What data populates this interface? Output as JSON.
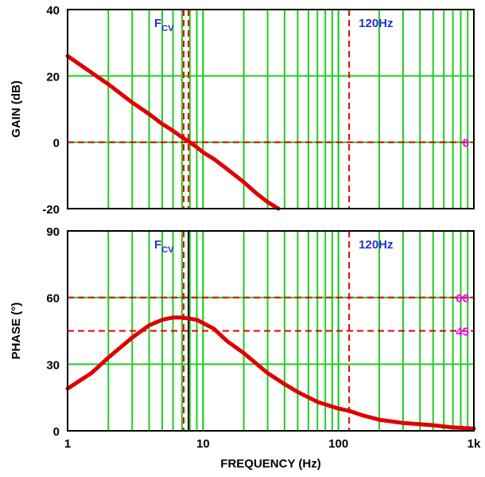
{
  "chart_data": [
    {
      "type": "line",
      "xscale": "log",
      "xlim": [
        1,
        1000
      ],
      "ylim": [
        -20,
        40
      ],
      "ylabel": "GAIN (dB)",
      "yticks": [
        -20,
        0,
        20,
        40
      ],
      "ytick_labels": [
        "-20",
        "0",
        "20",
        "40"
      ],
      "grid": true,
      "series": [
        {
          "color": "#e00000",
          "x": [
            1,
            1.5,
            2,
            3,
            4,
            5,
            6,
            7,
            8,
            9,
            10,
            12,
            15,
            20,
            25,
            30,
            36
          ],
          "y": [
            26,
            21,
            17.5,
            12,
            8.5,
            5.5,
            3.5,
            1.5,
            0,
            -1.5,
            -3,
            -5,
            -8,
            -12,
            -15.5,
            -18,
            -20
          ]
        }
      ],
      "reference_lines": [
        {
          "axis": "x",
          "value": 7.5,
          "label": "FCV",
          "color": "#e00000",
          "style": "dashed"
        },
        {
          "axis": "x",
          "value": 120,
          "label": "120Hz",
          "color": "#e00000",
          "style": "dashed"
        },
        {
          "axis": "y",
          "value": 0,
          "label": "0",
          "color": "#e00000",
          "style": "dashed"
        }
      ]
    },
    {
      "type": "line",
      "xscale": "log",
      "xlim": [
        1,
        1000
      ],
      "ylim": [
        0,
        90
      ],
      "xlabel": "FREQUENCY (Hz)",
      "ylabel": "PHASE (°)",
      "xticks": [
        1,
        10,
        100,
        1000
      ],
      "xtick_labels": [
        "1",
        "10",
        "100",
        "1k"
      ],
      "yticks": [
        0,
        30,
        60,
        90
      ],
      "ytick_labels": [
        "0",
        "30",
        "60",
        "90"
      ],
      "grid": true,
      "series": [
        {
          "color": "#e00000",
          "x": [
            1,
            1.5,
            2,
            3,
            4,
            5,
            6,
            7,
            8,
            9,
            10,
            12,
            15,
            20,
            30,
            40,
            50,
            70,
            100,
            120,
            150,
            200,
            300,
            500,
            700,
            1000
          ],
          "y": [
            19,
            26,
            33,
            42,
            47.5,
            50,
            51,
            51,
            50.5,
            50,
            48.5,
            46,
            40.5,
            35,
            26,
            21,
            17.5,
            13,
            10,
            9,
            7,
            5,
            3.5,
            2.5,
            1.5,
            1
          ]
        }
      ],
      "reference_lines": [
        {
          "axis": "x",
          "value": 7.5,
          "label": "FCV",
          "color": "#e00000",
          "style": "dashed"
        },
        {
          "axis": "x",
          "value": 120,
          "label": "120Hz",
          "color": "#e00000",
          "style": "dashed"
        },
        {
          "axis": "y",
          "value": 60,
          "label": "60",
          "color": "#e00000",
          "style": "dashed"
        },
        {
          "axis": "y",
          "value": 45,
          "label": "45",
          "color": "#e00000",
          "style": "dashed"
        }
      ]
    }
  ],
  "colors": {
    "grid": "#22cc22",
    "curve": "#e00000",
    "marker_label": "#2233cc",
    "ref_value_label": "#ee00ee",
    "axis_text": "#000000"
  }
}
